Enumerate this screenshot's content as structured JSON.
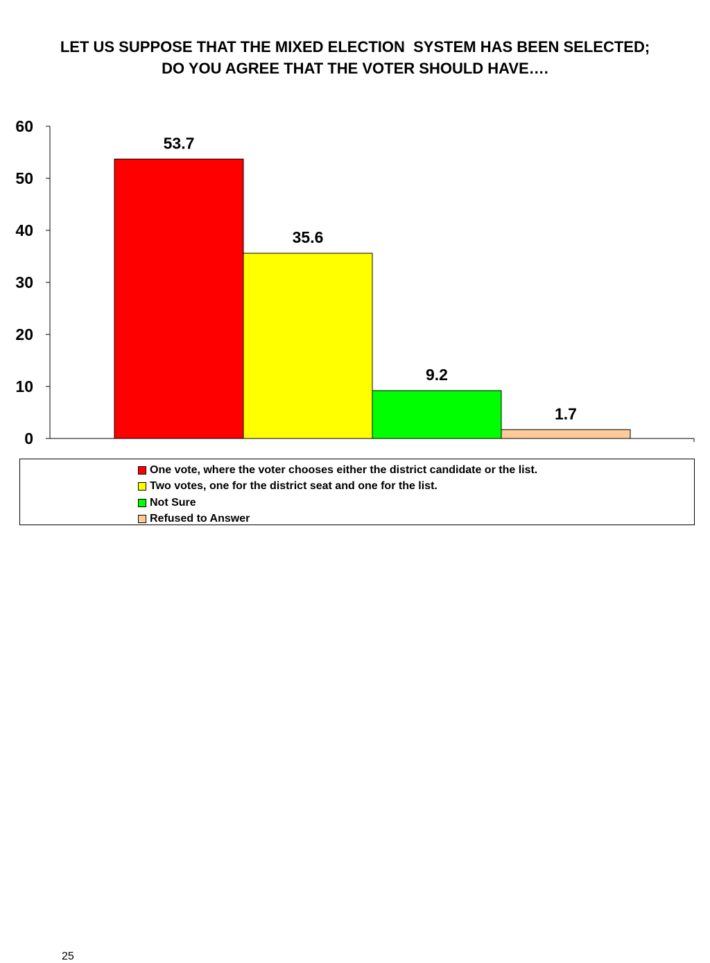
{
  "slide": {
    "page_number": "25"
  },
  "chart_data": {
    "type": "bar",
    "title_lines": [
      "LET US SUPPOSE THAT THE MIXED ELECTION  SYSTEM HAS BEEN SELECTED;",
      "DO YOU AGREE THAT THE VOTER SHOULD HAVE…."
    ],
    "xlabel": "",
    "ylabel": "",
    "ylim": [
      0,
      60
    ],
    "yticks": [
      0,
      10,
      20,
      30,
      40,
      50,
      60
    ],
    "grid": false,
    "legend_position": "bottom",
    "series": [
      {
        "name": "One vote, where the voter chooses either the district candidate or the list.",
        "value": 53.7,
        "label": "53.7",
        "color": "#ff0000"
      },
      {
        "name": "Two votes, one for the district seat and one for the list.",
        "value": 35.6,
        "label": "35.6",
        "color": "#ffff00"
      },
      {
        "name": "Not Sure",
        "value": 9.2,
        "label": "9.2",
        "color": "#00ff00"
      },
      {
        "name": "Refused to Answer",
        "value": 1.7,
        "label": "1.7",
        "color": "#ffcc99"
      }
    ]
  }
}
